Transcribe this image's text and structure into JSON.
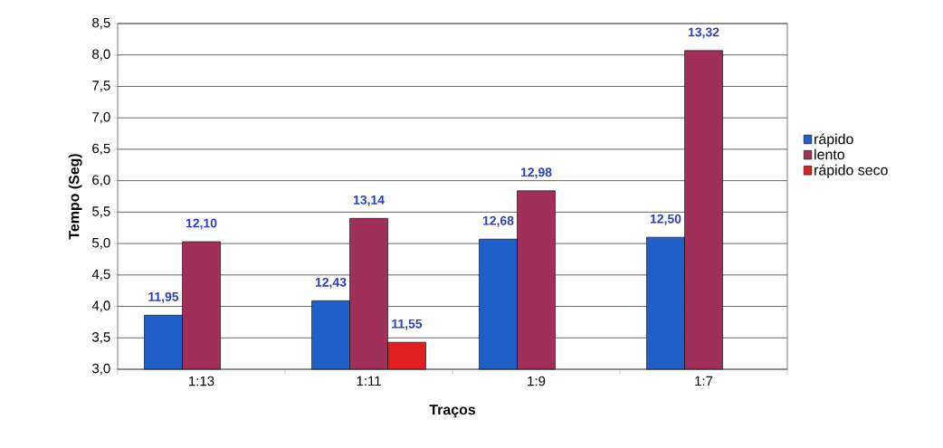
{
  "chart_data": {
    "type": "bar",
    "xlabel": "Traços",
    "ylabel": "Tempo (Seg)",
    "categories": [
      "1:13",
      "1:11",
      "1:9",
      "1:7"
    ],
    "series": [
      {
        "name": "rápido",
        "color": "#1f5fc8",
        "values": [
          3.86,
          4.09,
          5.07,
          5.1
        ]
      },
      {
        "name": "lento",
        "color": "#a0305a",
        "values": [
          5.03,
          5.4,
          5.84,
          8.07
        ]
      },
      {
        "name": "rápido seco",
        "color": "#e02020",
        "values": [
          null,
          3.43,
          null,
          null
        ]
      }
    ],
    "annotations": [
      "11,95",
      "12,43",
      "12,68",
      "12,50",
      "12,10",
      "13,14",
      "12,98",
      "13,32",
      "11,55"
    ],
    "ylim": [
      3.0,
      8.5
    ],
    "yticks": [
      {
        "value": 3.0,
        "label": "3,0"
      },
      {
        "value": 3.5,
        "label": "3,5"
      },
      {
        "value": 4.0,
        "label": "4,0"
      },
      {
        "value": 4.5,
        "label": "4,5"
      },
      {
        "value": 5.0,
        "label": "5,0"
      },
      {
        "value": 5.5,
        "label": "5,5"
      },
      {
        "value": 6.0,
        "label": "6,0"
      },
      {
        "value": 6.5,
        "label": "6,5"
      },
      {
        "value": 7.0,
        "label": "7,0"
      },
      {
        "value": 7.5,
        "label": "7,5"
      },
      {
        "value": 8.0,
        "label": "8,0"
      },
      {
        "value": 8.5,
        "label": "8,5"
      }
    ],
    "grid": "y",
    "legend": "right"
  }
}
